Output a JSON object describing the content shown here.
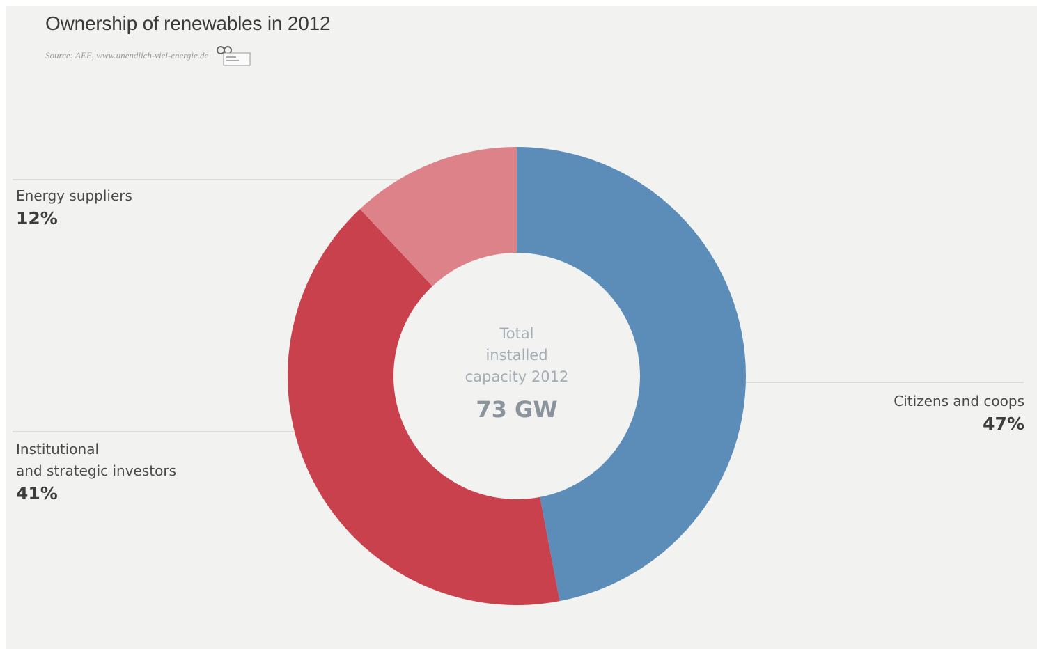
{
  "title": "Ownership of renewables in 2012",
  "source": "Source: AEE, www.unendlich-viel-energie.de",
  "chart_data": {
    "type": "pie",
    "title": "Ownership of renewables in 2012",
    "categories": [
      "Citizens and coops",
      "Institutional and strategic investors",
      "Energy suppliers"
    ],
    "values": [
      47,
      41,
      12
    ],
    "unit": "%",
    "colors": [
      "#5b8db8",
      "#c9414c",
      "#dd8289"
    ],
    "center_label": [
      "Total",
      "installed",
      "capacity 2012"
    ],
    "center_value": "73 GW",
    "labels": {
      "citizens": {
        "text": "Citizens and coops",
        "pct": "47%"
      },
      "institutional": {
        "line1": "Institutional",
        "line2": "and strategic investors",
        "pct": "41%"
      },
      "suppliers": {
        "text": "Energy suppliers",
        "pct": "12%"
      }
    }
  }
}
